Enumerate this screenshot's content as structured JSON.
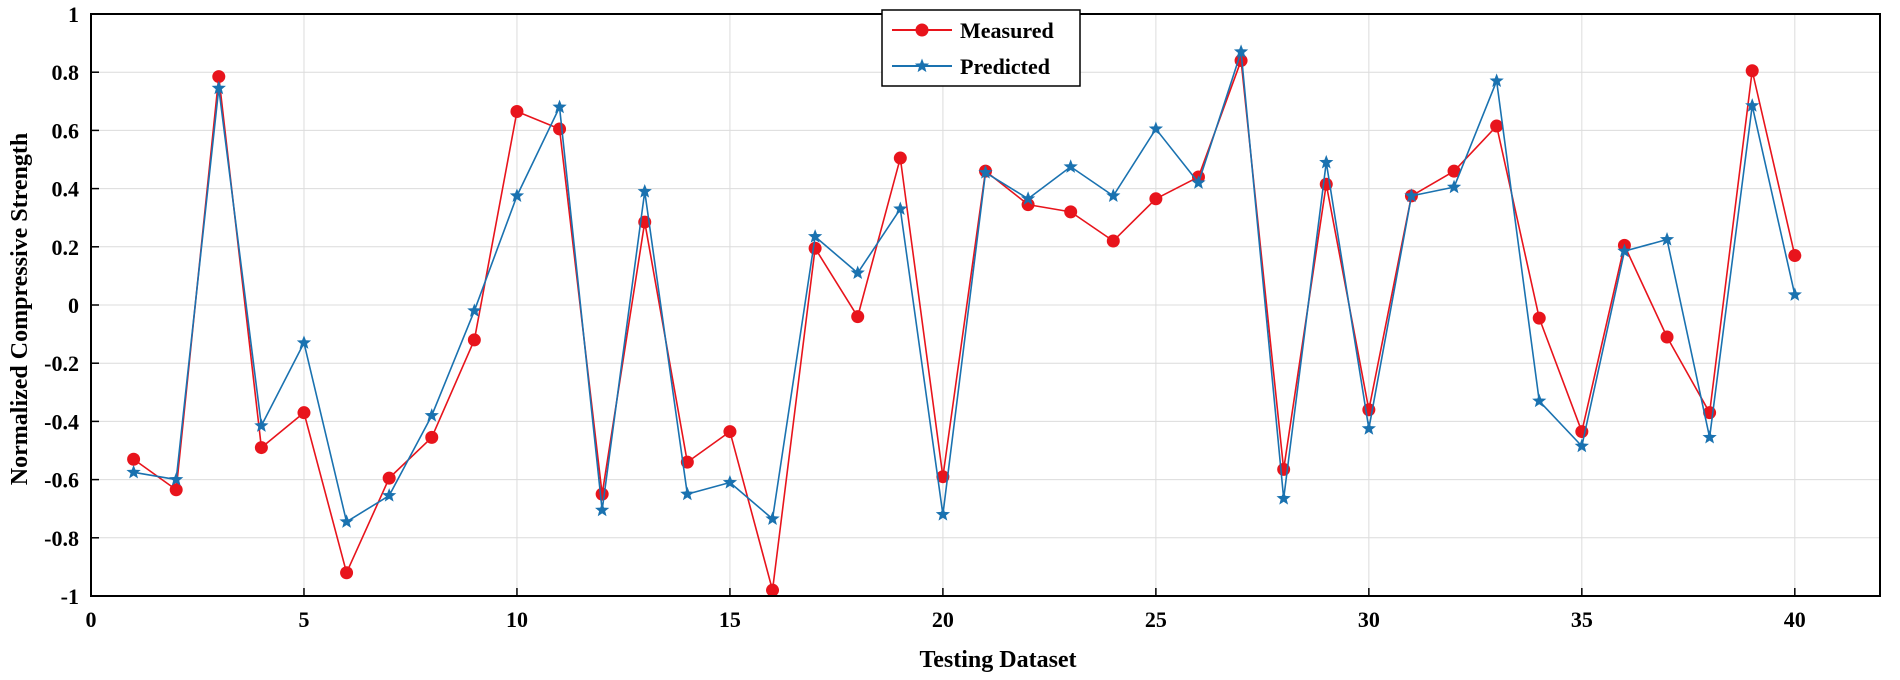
{
  "chart_data": {
    "type": "line",
    "xlabel": "Testing Dataset",
    "ylabel": "Normalized Compressive Strength",
    "xlim": [
      0,
      42
    ],
    "ylim": [
      -1,
      1
    ],
    "xticks": [
      0,
      5,
      10,
      15,
      20,
      25,
      30,
      35,
      40
    ],
    "yticks": [
      -1,
      -0.8,
      -0.6,
      -0.4,
      -0.2,
      0,
      0.2,
      0.4,
      0.6,
      0.8,
      1
    ],
    "xtick_labels": [
      "0",
      "5",
      "10",
      "15",
      "20",
      "25",
      "30",
      "35",
      "40"
    ],
    "ytick_labels": [
      "-1",
      "-0.8",
      "-0.6",
      "-0.4",
      "-0.2",
      "0",
      "0.2",
      "0.4",
      "0.6",
      "0.8",
      "1"
    ],
    "grid": true,
    "legend_position": "top-center",
    "x": [
      1,
      2,
      3,
      4,
      5,
      6,
      7,
      8,
      9,
      10,
      11,
      12,
      13,
      14,
      15,
      16,
      17,
      18,
      19,
      20,
      21,
      22,
      23,
      24,
      25,
      26,
      27,
      28,
      29,
      30,
      31,
      32,
      33,
      34,
      35,
      36,
      37,
      38,
      39,
      40
    ],
    "series": [
      {
        "name": "Measured",
        "color": "#e8141c",
        "marker": "circle",
        "values": [
          -0.53,
          -0.635,
          0.785,
          -0.49,
          -0.37,
          -0.92,
          -0.595,
          -0.455,
          -0.12,
          0.665,
          0.605,
          -0.65,
          0.285,
          -0.54,
          -0.435,
          -0.98,
          0.195,
          -0.04,
          0.505,
          -0.59,
          0.46,
          0.345,
          0.32,
          0.22,
          0.365,
          0.44,
          0.84,
          -0.565,
          0.415,
          -0.36,
          0.375,
          0.46,
          0.615,
          -0.045,
          -0.435,
          0.205,
          -0.11,
          -0.37,
          0.805,
          0.17
        ]
      },
      {
        "name": "Predicted",
        "color": "#1a72b0",
        "marker": "star",
        "values": [
          -0.575,
          -0.6,
          0.745,
          -0.415,
          -0.13,
          -0.745,
          -0.655,
          -0.38,
          -0.02,
          0.375,
          0.68,
          -0.705,
          0.39,
          -0.65,
          -0.61,
          -0.735,
          0.235,
          0.11,
          0.33,
          -0.72,
          0.455,
          0.365,
          0.475,
          0.375,
          0.605,
          0.42,
          0.87,
          -0.665,
          0.49,
          -0.425,
          0.375,
          0.405,
          0.77,
          -0.33,
          -0.485,
          0.185,
          0.225,
          -0.455,
          0.685,
          0.035
        ]
      }
    ]
  }
}
